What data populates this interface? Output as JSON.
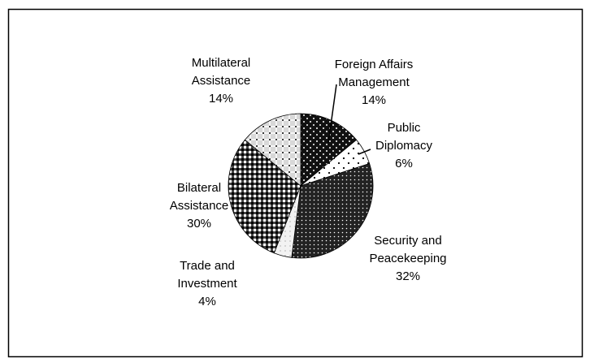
{
  "chart_data": {
    "type": "pie",
    "categories": [
      "Foreign Affairs Management",
      "Public Diplomacy",
      "Security and Peacekeeping",
      "Trade and Investment",
      "Bilateral Assistance",
      "Multilateral Assistance"
    ],
    "values": [
      14,
      6,
      32,
      4,
      30,
      14
    ],
    "value_labels": [
      "14%",
      "6%",
      "32%",
      "4%",
      "30%",
      "14%"
    ],
    "colors": [
      "#111111",
      "#ffffff",
      "#222222",
      "#f2f2f2",
      "#444444",
      "#d8d8d8"
    ]
  }
}
